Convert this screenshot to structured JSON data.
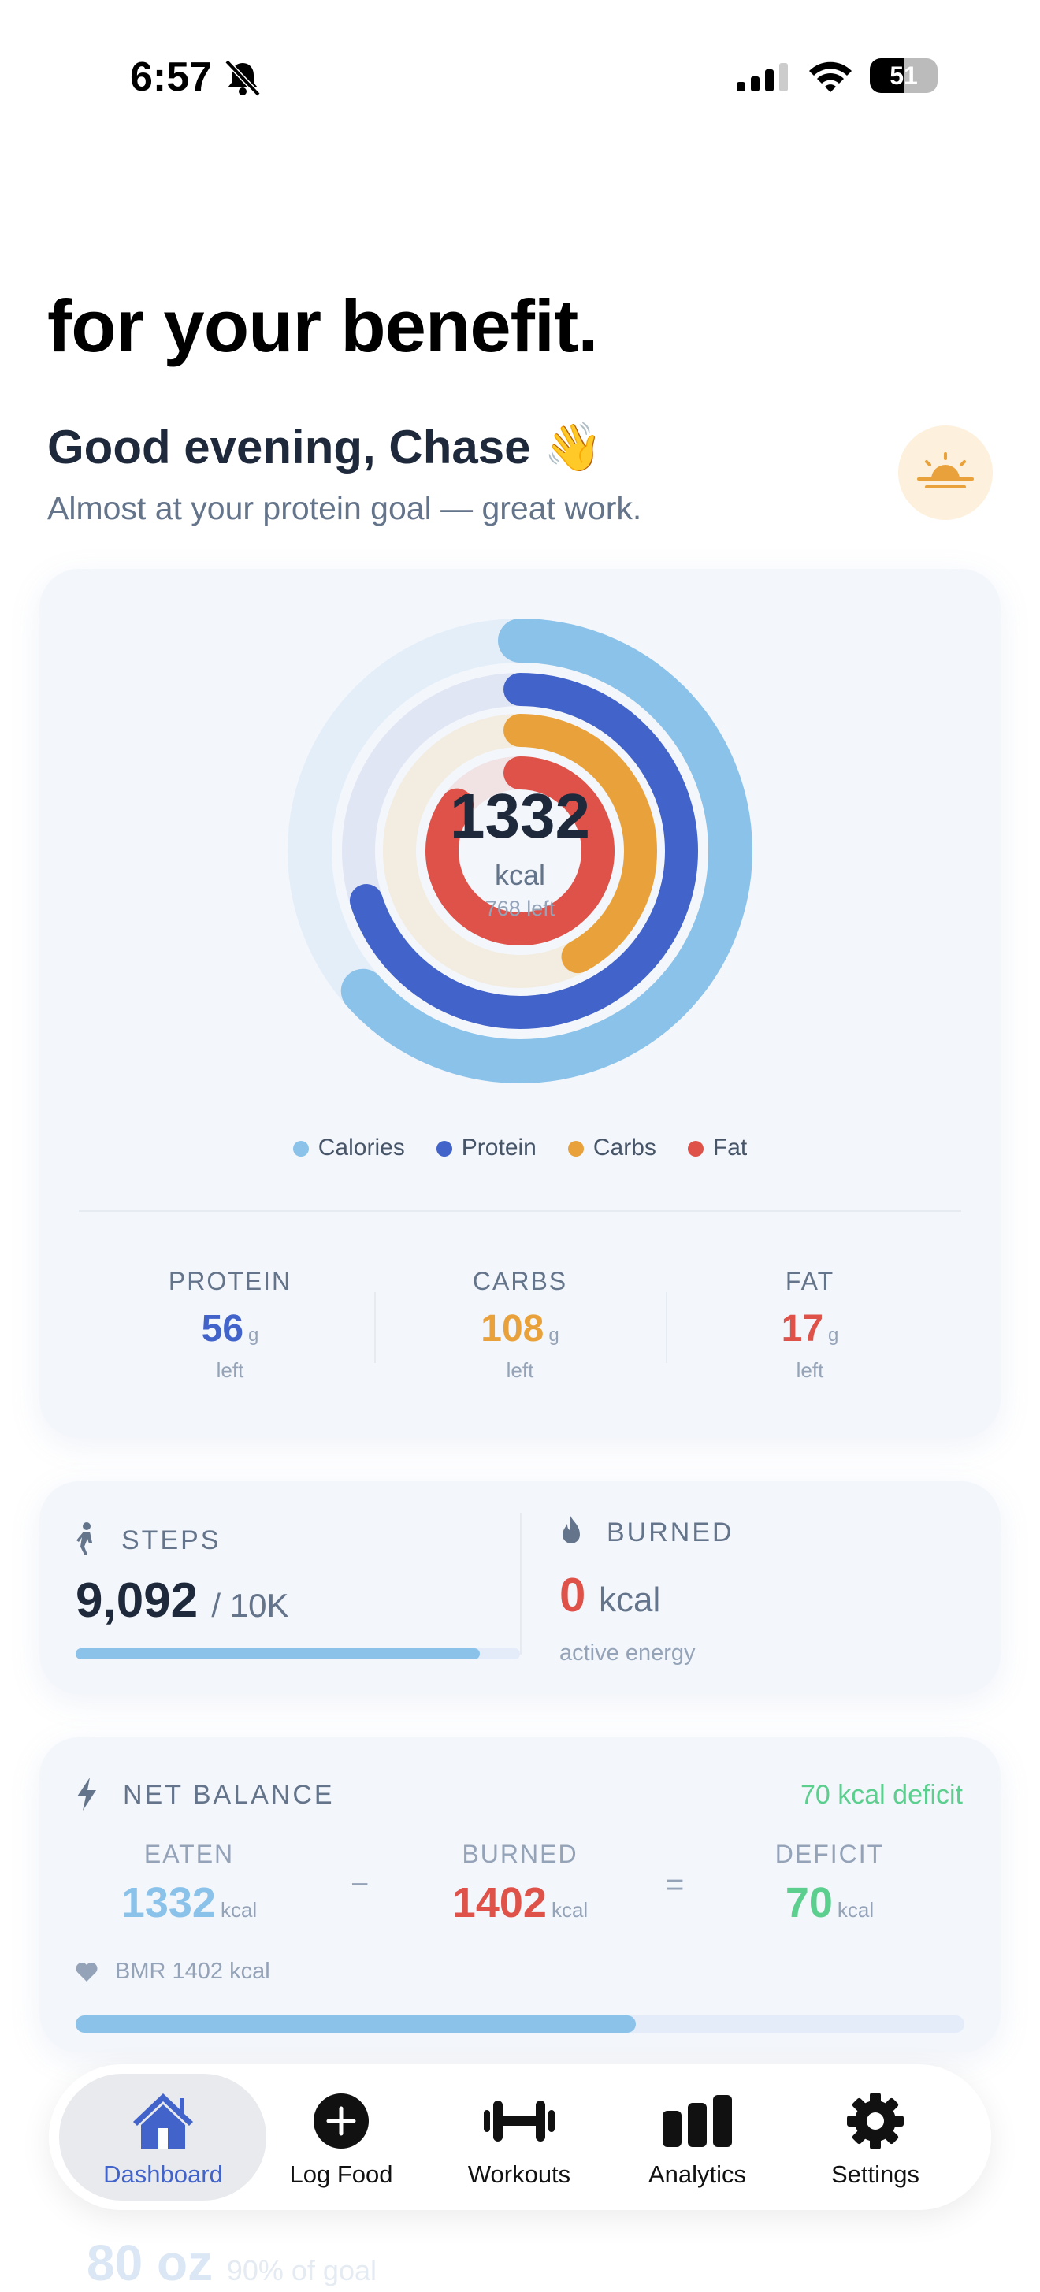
{
  "status_bar": {
    "time": "6:57",
    "battery": "51"
  },
  "header": {
    "title": "for your benefit.",
    "greeting": "Good evening, Chase 👋",
    "subtitle": "Almost at your protein goal — great work."
  },
  "rings": {
    "center_value": "1332",
    "center_unit": "kcal",
    "center_left": "768 left",
    "progress": {
      "calories": 0.634,
      "protein": 0.7,
      "carbs": 0.42,
      "fat": 0.85
    },
    "colors": {
      "calories": "#8ac2ea",
      "protein": "#4263c9",
      "carbs": "#e9a23b",
      "fat": "#de5249"
    }
  },
  "legend": [
    "Calories",
    "Protein",
    "Carbs",
    "Fat"
  ],
  "macros": [
    {
      "label": "PROTEIN",
      "value": "56",
      "unit": "g",
      "note": "left"
    },
    {
      "label": "CARBS",
      "value": "108",
      "unit": "g",
      "note": "left"
    },
    {
      "label": "FAT",
      "value": "17",
      "unit": "g",
      "note": "left"
    }
  ],
  "steps": {
    "label": "STEPS",
    "value": "9,092",
    "goal": "/ 10K",
    "progress": 0.909
  },
  "burned": {
    "label": "BURNED",
    "value": "0",
    "unit": "kcal",
    "note": "active energy"
  },
  "net": {
    "label": "NET BALANCE",
    "summary": "70 kcal deficit",
    "eaten": {
      "label": "EATEN",
      "value": "1332",
      "unit": "kcal"
    },
    "minus": "−",
    "burned": {
      "label": "BURNED",
      "value": "1402",
      "unit": "kcal"
    },
    "equals": "=",
    "deficit": {
      "label": "DEFICIT",
      "value": "70",
      "unit": "kcal"
    },
    "bmr": "BMR 1402 kcal",
    "progress": 0.63
  },
  "faded": {
    "value": "80 oz",
    "note": "90% of goal"
  },
  "nav": [
    {
      "label": "Dashboard"
    },
    {
      "label": "Log Food"
    },
    {
      "label": "Workouts"
    },
    {
      "label": "Analytics"
    },
    {
      "label": "Settings"
    }
  ]
}
